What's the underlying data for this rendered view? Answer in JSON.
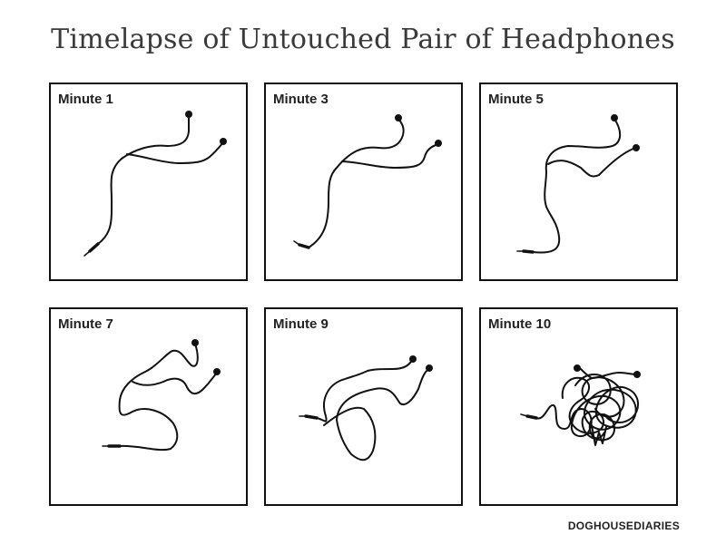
{
  "title": "Timelapse of Untouched Pair of Headphones",
  "panels": [
    {
      "label": "Minute 1"
    },
    {
      "label": "Minute 3"
    },
    {
      "label": "Minute 5"
    },
    {
      "label": "Minute 7"
    },
    {
      "label": "Minute 9"
    },
    {
      "label": "Minute 10"
    }
  ],
  "credit": "DOGHOUSEDIARIES"
}
